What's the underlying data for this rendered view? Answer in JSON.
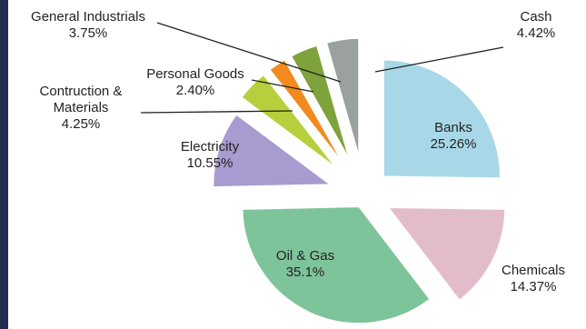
{
  "chart_data": {
    "type": "pie",
    "title": "",
    "slices": [
      {
        "label": "Banks",
        "value_text": "25.26%",
        "value": 25.26,
        "color": "#a8d8e8"
      },
      {
        "label": "Chemicals",
        "value_text": "14.37%",
        "value": 14.37,
        "color": "#e3bccb"
      },
      {
        "label": "Oil & Gas",
        "value_text": "35.1%",
        "value": 35.1,
        "color": "#7ec49a"
      },
      {
        "label": "Electricity",
        "value_text": "10.55%",
        "value": 10.55,
        "color": "#a89bcf"
      },
      {
        "label": "Contruction & Materials",
        "value_text": "4.25%",
        "value": 4.25,
        "color": "#b6cf3c"
      },
      {
        "label": "Personal Goods",
        "value_text": "2.40%",
        "value": 2.4,
        "color": "#f28a1e"
      },
      {
        "label": "General Industrials",
        "value_text": "3.75%",
        "value": 3.75,
        "color": "#7ea23c"
      },
      {
        "label": "Cash",
        "value_text": "4.42%",
        "value": 4.42,
        "color": "#9aa19e"
      }
    ]
  }
}
